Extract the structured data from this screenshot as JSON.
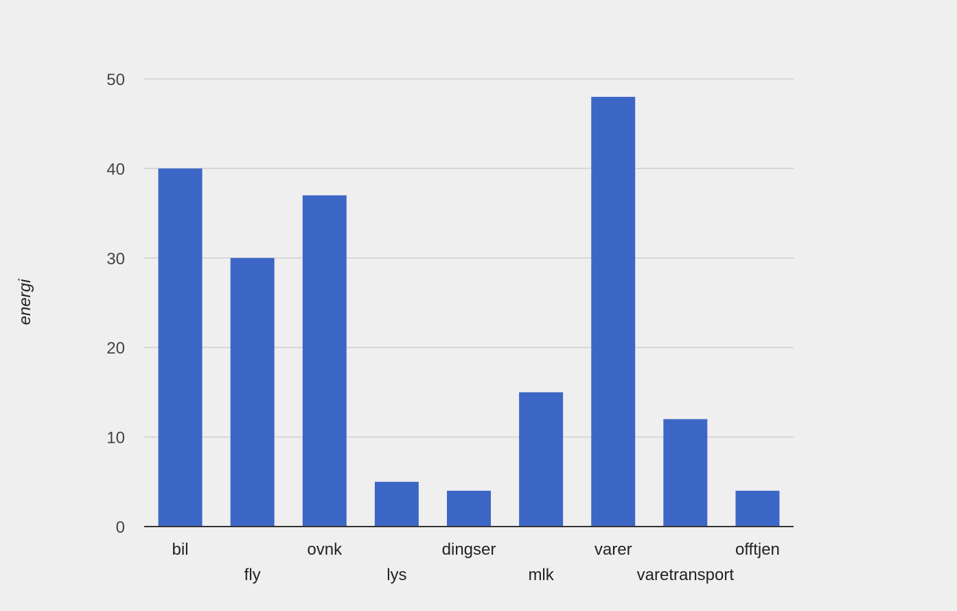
{
  "chart_data": {
    "type": "bar",
    "title": "",
    "xlabel": "",
    "ylabel": "energi",
    "categories": [
      "bil",
      "fly",
      "ovnk",
      "lys",
      "dingser",
      "mlk",
      "varer",
      "varetransport",
      "offtjen"
    ],
    "values": [
      40,
      30,
      37,
      5,
      4,
      15,
      48,
      12,
      4
    ],
    "ylim": [
      0,
      50
    ],
    "yticks": [
      "0",
      "10",
      "20",
      "30",
      "40",
      "50"
    ],
    "grid": true,
    "legend": "none",
    "colors": {
      "bar": "#3d67c6",
      "grid": "#cfcfcf",
      "axis": "#333333",
      "background": "#efefef"
    }
  }
}
